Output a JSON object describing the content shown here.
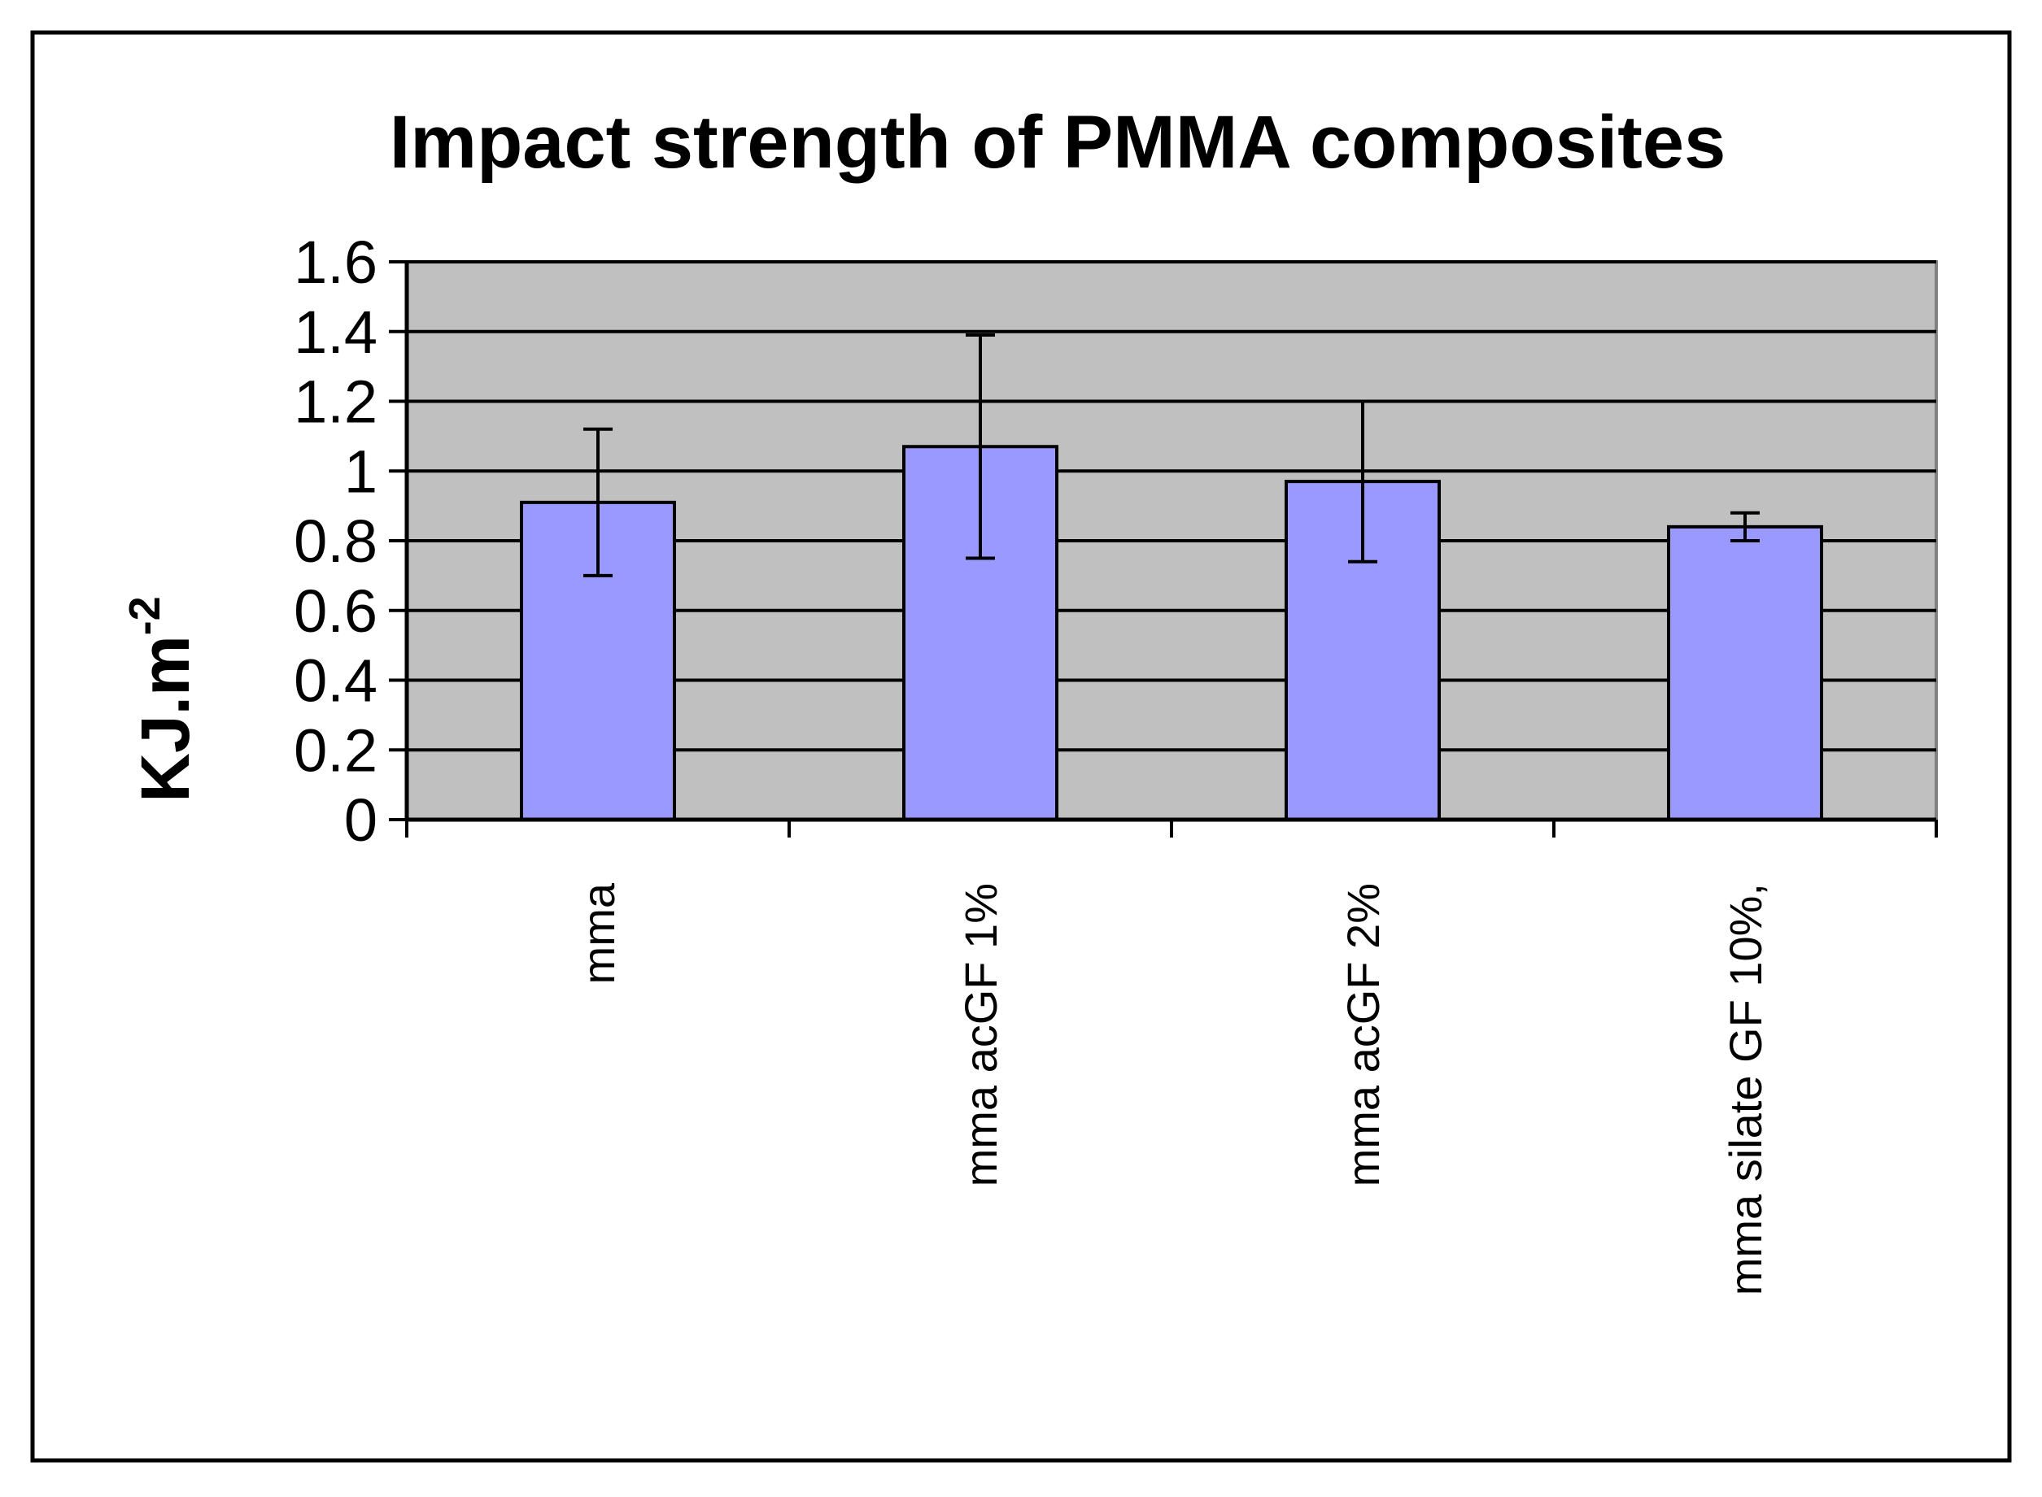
{
  "chart_data": {
    "type": "bar",
    "title": "Impact strength of PMMA composites",
    "xlabel": "",
    "ylabel": "KJ.m",
    "ylabel_superscript": "-2",
    "categories": [
      "mma",
      "mma acGF 1%",
      "mma acGF 2%",
      "mma silate GF 10%,"
    ],
    "series": [
      {
        "name": "Impact strength",
        "values": [
          0.91,
          1.07,
          0.97,
          0.84
        ],
        "error": [
          0.21,
          0.32,
          0.23,
          0.04
        ]
      }
    ],
    "ylim": [
      0,
      1.6
    ],
    "yticks": [
      0,
      0.2,
      0.4,
      0.6,
      0.8,
      1,
      1.2,
      1.4,
      1.6
    ],
    "ytick_labels": [
      "0",
      "0.2",
      "0.4",
      "0.6",
      "0.8",
      "1",
      "1.2",
      "1.4",
      "1.6"
    ],
    "grid": true,
    "legend": "none",
    "colors": {
      "bar_fill": "#9999FF",
      "plot_background": "#C0C0C0",
      "border": "#000000"
    }
  }
}
